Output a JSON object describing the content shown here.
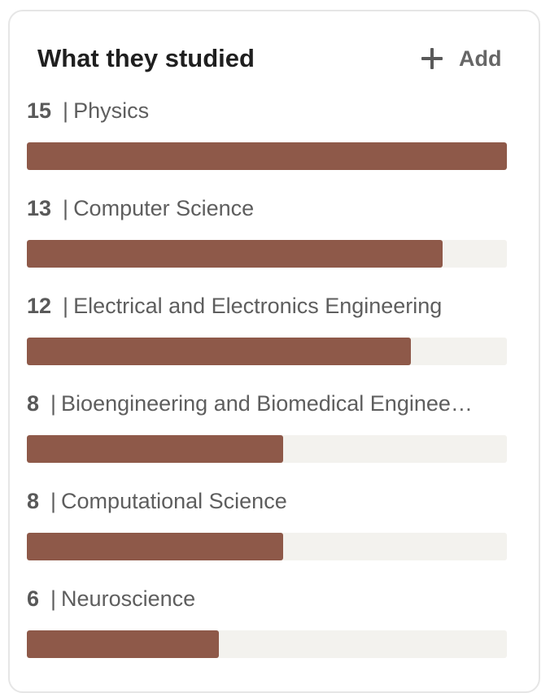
{
  "card": {
    "title": "What they studied",
    "add_label": "Add"
  },
  "colors": {
    "bar_fill": "#8e5949",
    "bar_track": "#f3f2ee"
  },
  "items": [
    {
      "count": "15",
      "name": "Physics",
      "value": 15
    },
    {
      "count": "13",
      "name": "Computer Science",
      "value": 13
    },
    {
      "count": "12",
      "name": "Electrical and Electronics Engineering",
      "value": 12
    },
    {
      "count": "8",
      "name": "Bioengineering and Biomedical Enginee…",
      "value": 8
    },
    {
      "count": "8",
      "name": "Computational Science",
      "value": 8
    },
    {
      "count": "6",
      "name": "Neuroscience",
      "value": 6
    }
  ],
  "scale_max": 15
}
